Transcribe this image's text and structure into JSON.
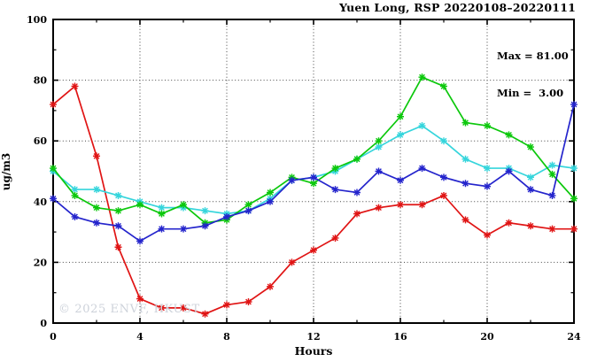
{
  "watermark": "© 2025 ENVF, HKUST",
  "annotation": {
    "max_label": "Max = 81.00",
    "min_label": "Min =  3.00"
  },
  "chart_data": {
    "type": "line",
    "title": "Yuen Long, RSP 20220108–20220111",
    "xlabel": "Hours",
    "ylabel": "ug/m3",
    "xlim": [
      0,
      24
    ],
    "ylim": [
      0,
      100
    ],
    "x_major_ticks": [
      0,
      4,
      8,
      12,
      16,
      20,
      24
    ],
    "x_minor_ticks": [
      2,
      6,
      10,
      14,
      18,
      22
    ],
    "y_major_ticks": [
      0,
      20,
      40,
      60,
      80,
      100
    ],
    "y_minor_ticks": [
      10,
      30,
      50,
      70,
      90
    ],
    "grid_x": [
      4,
      8,
      12,
      16,
      20
    ],
    "grid_y": [
      20,
      40,
      60,
      80
    ],
    "grid_style": "dotted",
    "legend_position": "none",
    "stats": {
      "max": 81.0,
      "min": 3.0
    },
    "x": [
      0,
      1,
      2,
      3,
      4,
      5,
      6,
      7,
      8,
      9,
      10,
      11,
      12,
      13,
      14,
      15,
      16,
      17,
      18,
      19,
      20,
      21,
      22,
      23,
      24
    ],
    "series": [
      {
        "name": "red",
        "color": "#e01414",
        "values": [
          72,
          78,
          55,
          25,
          8,
          5,
          5,
          3,
          6,
          7,
          12,
          20,
          24,
          28,
          36,
          38,
          39,
          39,
          42,
          34,
          29,
          33,
          32,
          31,
          31
        ]
      },
      {
        "name": "cyan",
        "color": "#35d5dc",
        "values": [
          50,
          44,
          44,
          42,
          40,
          38,
          38,
          37,
          36,
          37,
          41,
          47,
          48,
          50,
          54,
          58,
          62,
          65,
          60,
          54,
          51,
          51,
          48,
          52,
          51
        ]
      },
      {
        "name": "green",
        "color": "#0cc80c",
        "values": [
          51,
          42,
          38,
          37,
          39,
          36,
          39,
          33,
          34,
          39,
          43,
          48,
          46,
          51,
          54,
          60,
          68,
          81,
          78,
          66,
          65,
          62,
          58,
          49,
          41
        ]
      },
      {
        "name": "blue",
        "color": "#2424cc",
        "values": [
          41,
          35,
          33,
          32,
          27,
          31,
          31,
          32,
          35,
          37,
          40,
          47,
          48,
          44,
          43,
          50,
          47,
          51,
          48,
          46,
          45,
          50,
          44,
          42,
          72
        ]
      }
    ]
  }
}
